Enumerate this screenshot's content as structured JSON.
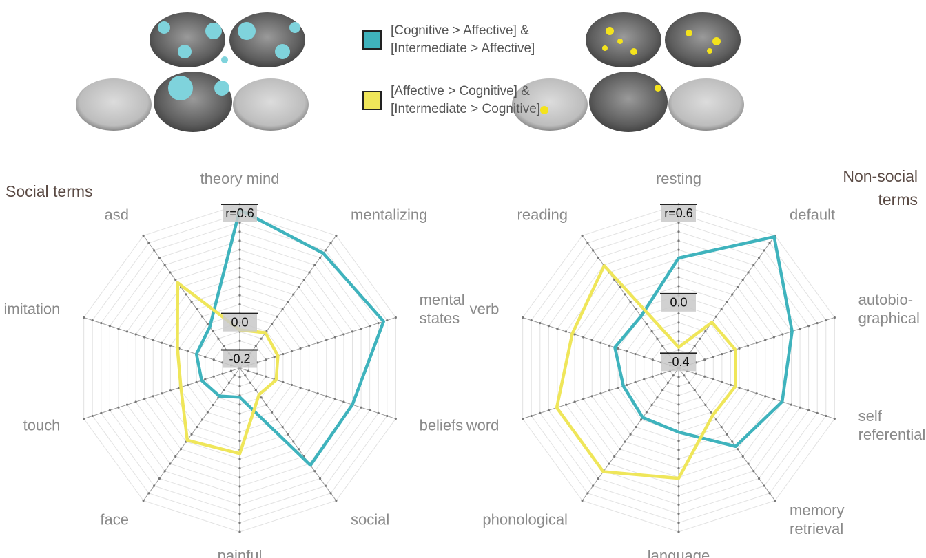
{
  "legend": [
    {
      "color": "#3fb3bd",
      "lines": [
        "[Cognitive > Affective] &",
        "[Intermediate > Affective]"
      ]
    },
    {
      "color": "#efe65a",
      "lines": [
        "[Affective > Cognitive] &",
        "[Intermediate > Cognitive]"
      ]
    }
  ],
  "chart_data": [
    {
      "type": "radar",
      "title": [
        "Social terms"
      ],
      "categories": [
        [
          "theory mind"
        ],
        [
          "mentalizing"
        ],
        [
          "mental",
          "states"
        ],
        [
          "beliefs"
        ],
        [
          "social"
        ],
        [
          "painful"
        ],
        [
          "face"
        ],
        [
          "touch"
        ],
        [
          "imitation"
        ],
        [
          "asd"
        ]
      ],
      "ylim": [
        -0.3,
        0.6
      ],
      "yticks": [
        -0.2,
        {
          "value": 0,
          "label": "0.0"
        },
        {
          "value": 0.6,
          "label": "r=0.6"
        }
      ],
      "series": [
        {
          "color": "#3fb3bd",
          "values": [
            0.57,
            0.48,
            0.53,
            0.35,
            0.36,
            -0.14,
            -0.11,
            -0.08,
            -0.05,
            -0.02
          ]
        },
        {
          "color": "#efe65a",
          "values": [
            -0.09,
            -0.06,
            -0.08,
            -0.09,
            -0.12,
            0.17,
            0.19,
            0.04,
            0.06,
            0.28
          ]
        }
      ]
    },
    {
      "type": "radar",
      "title": [
        "Non-social",
        "terms"
      ],
      "categories": [
        [
          "resting"
        ],
        [
          "default"
        ],
        [
          "autobio-",
          "graphical"
        ],
        [
          "self",
          "referential"
        ],
        [
          "memory",
          "retrieval"
        ],
        [
          "language"
        ],
        [
          "phonological"
        ],
        [
          "word"
        ],
        [
          "verb"
        ],
        [
          "reading"
        ]
      ],
      "ylim": [
        -0.5,
        0.6
      ],
      "yticks": [
        -0.4,
        {
          "value": 0,
          "label": "0.0"
        },
        {
          "value": 0.6,
          "label": "r=0.6"
        }
      ],
      "series": [
        {
          "color": "#3fb3bd",
          "values": [
            0.24,
            0.59,
            0.3,
            0.23,
            0.15,
            -0.07,
            -0.09,
            -0.11,
            -0.05,
            -0.07
          ]
        },
        {
          "color": "#efe65a",
          "values": [
            -0.36,
            -0.12,
            -0.1,
            -0.1,
            -0.11,
            0.24,
            0.36,
            0.36,
            0.25,
            0.35
          ]
        }
      ]
    }
  ]
}
